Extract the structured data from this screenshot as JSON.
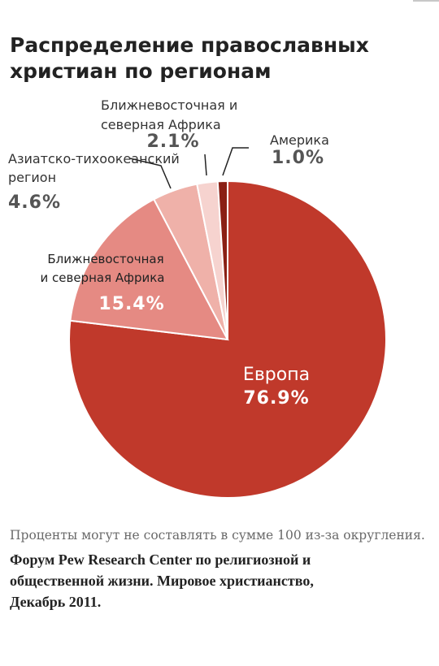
{
  "header": {
    "title_line1": "Распределение православных",
    "title_line2": "христиан по регионам"
  },
  "chart_data": {
    "type": "pie",
    "categories": [
      "Европа",
      "Ближневосточная и северная Африка",
      "Азиатско-тихоокеанский регион",
      "Ближневосточная и северная Африка",
      "Америка"
    ],
    "values": [
      76.9,
      15.4,
      4.6,
      2.1,
      1.0
    ],
    "value_labels": [
      "76.9%",
      "15.4%",
      "4.6%",
      "2.1%",
      "1.0%"
    ],
    "colors": [
      "#c0392b",
      "#e58a83",
      "#efb1a9",
      "#f6d3cf",
      "#8a1f14"
    ],
    "start": "12 o'clock",
    "direction": "clockwise",
    "label_lines": {
      "europe": [
        "Европа"
      ],
      "mena_large": [
        "Ближневосточная",
        "и северная Африка"
      ],
      "asia_pacific": [
        "Азиатско-тихоокеанский",
        "регион"
      ],
      "mena_small": [
        "Ближневосточная и",
        "северная Африка"
      ],
      "americas": [
        "Америка"
      ]
    }
  },
  "footer": {
    "note": "Проценты могут не составлять в сумме 100 из-за округления.",
    "source_line1": "Форум Pew Research Center по религиозной и",
    "source_line2": "общественной жизни. Мировое христианство,",
    "source_line3": "Декабрь 2011."
  },
  "colors": {
    "title": "#222222",
    "leader_line": "#222222"
  }
}
